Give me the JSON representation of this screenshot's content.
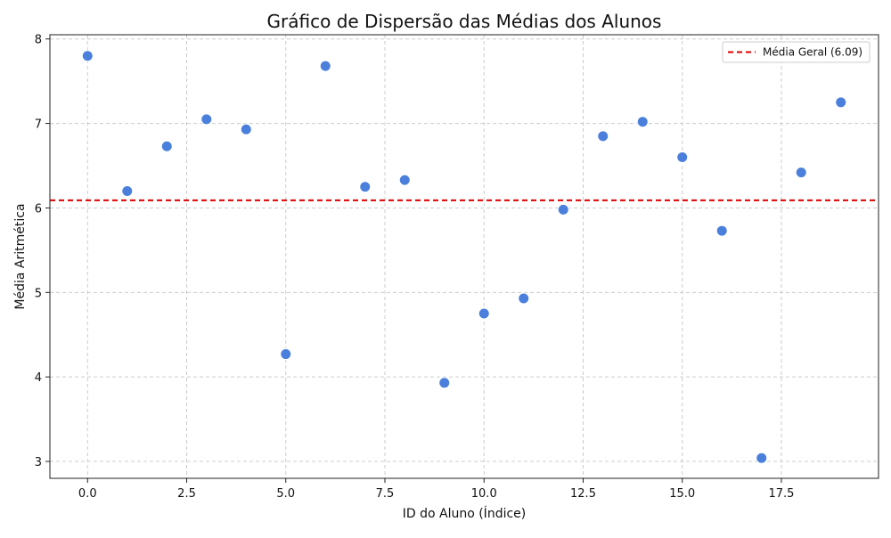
{
  "chart_data": {
    "type": "scatter",
    "title": "Gráfico de Dispersão das Médias dos Alunos",
    "xlabel": "ID do Aluno (Índice)",
    "ylabel": "Média Aritmética",
    "xlim": [
      -0.95,
      19.95
    ],
    "ylim": [
      2.8,
      8.05
    ],
    "xticks": [
      0,
      2.5,
      5,
      7.5,
      10,
      12.5,
      15,
      17.5
    ],
    "xtick_labels": [
      "0.0",
      "2.5",
      "5.0",
      "7.5",
      "10.0",
      "12.5",
      "15.0",
      "17.5"
    ],
    "yticks": [
      3,
      4,
      5,
      6,
      7,
      8
    ],
    "ytick_labels": [
      "3",
      "4",
      "5",
      "6",
      "7",
      "8"
    ],
    "grid": true,
    "legend_position": "top-right",
    "series": [
      {
        "name": "",
        "color": "#4a7fdc",
        "x": [
          0,
          1,
          2,
          3,
          4,
          5,
          6,
          7,
          8,
          9,
          10,
          11,
          12,
          13,
          14,
          15,
          16,
          17,
          18,
          19
        ],
        "y": [
          7.8,
          6.2,
          6.73,
          7.05,
          6.93,
          4.27,
          7.68,
          6.25,
          6.33,
          3.93,
          4.75,
          4.93,
          5.98,
          6.85,
          7.02,
          6.6,
          5.73,
          3.04,
          6.42,
          7.25
        ]
      }
    ],
    "reference_lines": [
      {
        "name": "Média Geral (6.09)",
        "orientation": "horizontal",
        "value": 6.09,
        "color": "#e00000",
        "style": "dashed"
      }
    ]
  }
}
